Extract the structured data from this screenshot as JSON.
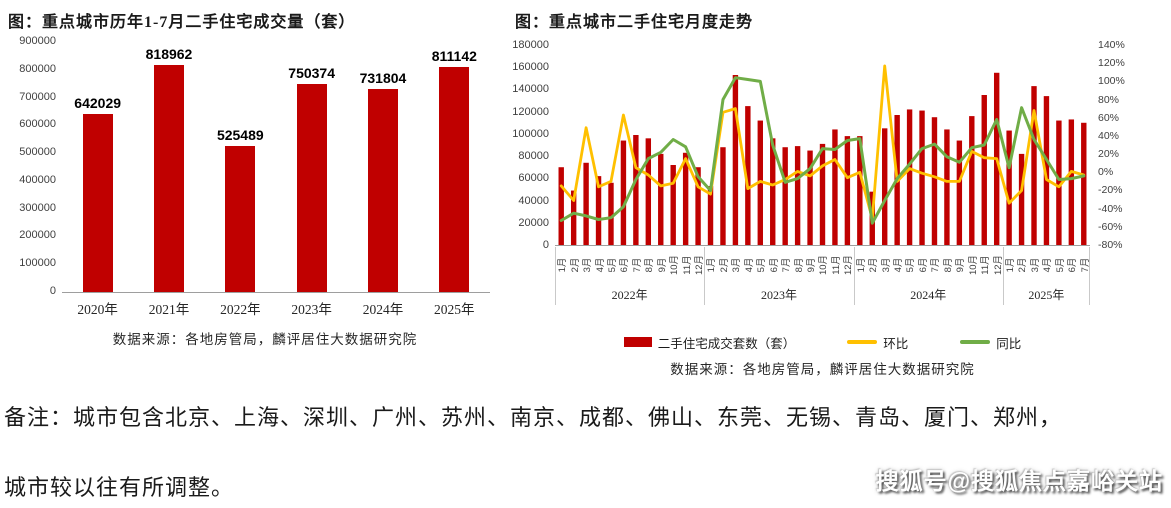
{
  "note": {
    "line1": "备注：城市包含北京、上海、深圳、广州、苏州、南京、成都、佛山、东莞、无锡、青岛、厦门、郑州，",
    "line2": "城市较以往有所调整。"
  },
  "watermark": "搜狐号@搜狐焦点嘉峪关站",
  "colors": {
    "bar_red": "#C00000",
    "line_yellow": "#FFC000",
    "line_green": "#70AD47",
    "axis_text": "#404040",
    "separator": "#C9C9C9"
  },
  "chart_data": [
    {
      "type": "bar",
      "title": "图：重点城市历年1-7月二手住宅成交量（套）",
      "source": "数据来源：各地房管局，麟评居住大数据研究院",
      "categories": [
        "2020年",
        "2021年",
        "2022年",
        "2023年",
        "2024年",
        "2025年"
      ],
      "values": [
        642029,
        818962,
        525489,
        750374,
        731804,
        811142
      ],
      "data_labels": [
        "642029",
        "818962",
        "525489",
        "750374",
        "731804",
        "811142"
      ],
      "ylim": [
        0,
        900000
      ],
      "ytick_labels": [
        "900000",
        "800000",
        "700000",
        "600000",
        "500000",
        "400000",
        "300000",
        "200000",
        "100000",
        "0"
      ],
      "grid": false,
      "legend": "none"
    },
    {
      "type": "bar+line",
      "title": "图：重点城市二手住宅月度走势",
      "source": "数据来源：各地房管局，麟评居住大数据研究院",
      "year_groups": [
        {
          "year": "2022年",
          "months": [
            "1月",
            "2月",
            "3月",
            "4月",
            "5月",
            "6月",
            "7月",
            "8月",
            "9月",
            "10月",
            "11月",
            "12月"
          ]
        },
        {
          "year": "2023年",
          "months": [
            "1月",
            "2月",
            "3月",
            "4月",
            "5月",
            "6月",
            "7月",
            "8月",
            "9月",
            "10月",
            "11月",
            "12月"
          ]
        },
        {
          "year": "2024年",
          "months": [
            "1月",
            "2月",
            "3月",
            "4月",
            "5月",
            "6月",
            "7月",
            "8月",
            "9月",
            "10月",
            "11月",
            "12月"
          ]
        },
        {
          "year": "2025年",
          "months": [
            "1月",
            "2月",
            "3月",
            "4月",
            "5月",
            "6月",
            "7月"
          ]
        }
      ],
      "left_axis": {
        "min": 0,
        "max": 180000,
        "tick_labels": [
          "180000",
          "160000",
          "140000",
          "120000",
          "100000",
          "80000",
          "60000",
          "40000",
          "20000",
          "0"
        ]
      },
      "right_axis": {
        "min": -80,
        "max": 140,
        "tick_labels": [
          "140%",
          "120%",
          "100%",
          "80%",
          "60%",
          "40%",
          "20%",
          "0%",
          "-20%",
          "-40%",
          "-60%",
          "-80%"
        ]
      },
      "series": [
        {
          "name": "二手住宅成交套数（套）",
          "type": "bar",
          "axis": "left",
          "color": "#C00000",
          "values": [
            70000,
            49000,
            74000,
            62000,
            56000,
            94000,
            99000,
            96000,
            82000,
            72000,
            83000,
            70000,
            53000,
            88000,
            153000,
            125000,
            112000,
            96000,
            88000,
            89000,
            85000,
            91000,
            104000,
            98000,
            98000,
            48000,
            105000,
            117000,
            122000,
            121000,
            115000,
            104000,
            94000,
            116000,
            135000,
            155000,
            103000,
            82000,
            143000,
            134000,
            112000,
            113000,
            110000
          ]
        },
        {
          "name": "环比",
          "type": "line",
          "axis": "right",
          "color": "#FFC000",
          "values": [
            -15,
            -31,
            49,
            -16,
            -10,
            63,
            5,
            -3,
            -15,
            -12,
            15,
            -16,
            -24,
            66,
            70,
            -18,
            -10,
            -14,
            -8,
            1,
            -4,
            7,
            14,
            -6,
            0,
            -51,
            117,
            -10,
            4,
            -1,
            -5,
            -10,
            -10,
            23,
            16,
            15,
            -34,
            -20,
            68,
            -8,
            -16,
            1,
            -3
          ]
        },
        {
          "name": "同比",
          "type": "line",
          "axis": "right",
          "color": "#70AD47",
          "values": [
            -53,
            -45,
            -48,
            -52,
            -50,
            -38,
            -8,
            15,
            22,
            36,
            28,
            -5,
            -20,
            80,
            104,
            102,
            100,
            30,
            -11,
            -7,
            4,
            26,
            25,
            35,
            37,
            -56,
            -31,
            -7,
            9,
            26,
            31,
            17,
            11,
            27,
            30,
            58,
            5,
            71,
            36,
            14,
            -8,
            -7,
            -4
          ]
        }
      ],
      "grid": false,
      "legend_position": "bottom"
    }
  ]
}
